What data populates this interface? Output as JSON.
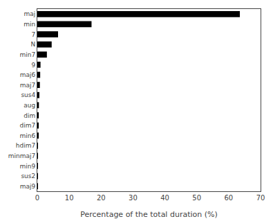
{
  "chart_data": {
    "type": "bar",
    "orientation": "horizontal",
    "categories": [
      "maj",
      "min",
      "7",
      "N",
      "min7",
      "9",
      "maj6",
      "maj7",
      "sus4",
      "aug",
      "dim",
      "dim7",
      "min6",
      "hdim7",
      "minmaj7",
      "min9",
      "sus2",
      "maj9"
    ],
    "values": [
      63.5,
      17.0,
      6.5,
      4.5,
      3.0,
      1.0,
      0.9,
      0.8,
      0.65,
      0.5,
      0.45,
      0.4,
      0.3,
      0.2,
      0.15,
      0.1,
      0.07,
      0.04
    ],
    "color": "#000000",
    "xlabel": "Percentage of the total duration (%)",
    "xlim": [
      0,
      70
    ],
    "xticks": [
      0,
      10,
      20,
      30,
      40,
      50,
      60,
      70
    ],
    "grid": false
  }
}
